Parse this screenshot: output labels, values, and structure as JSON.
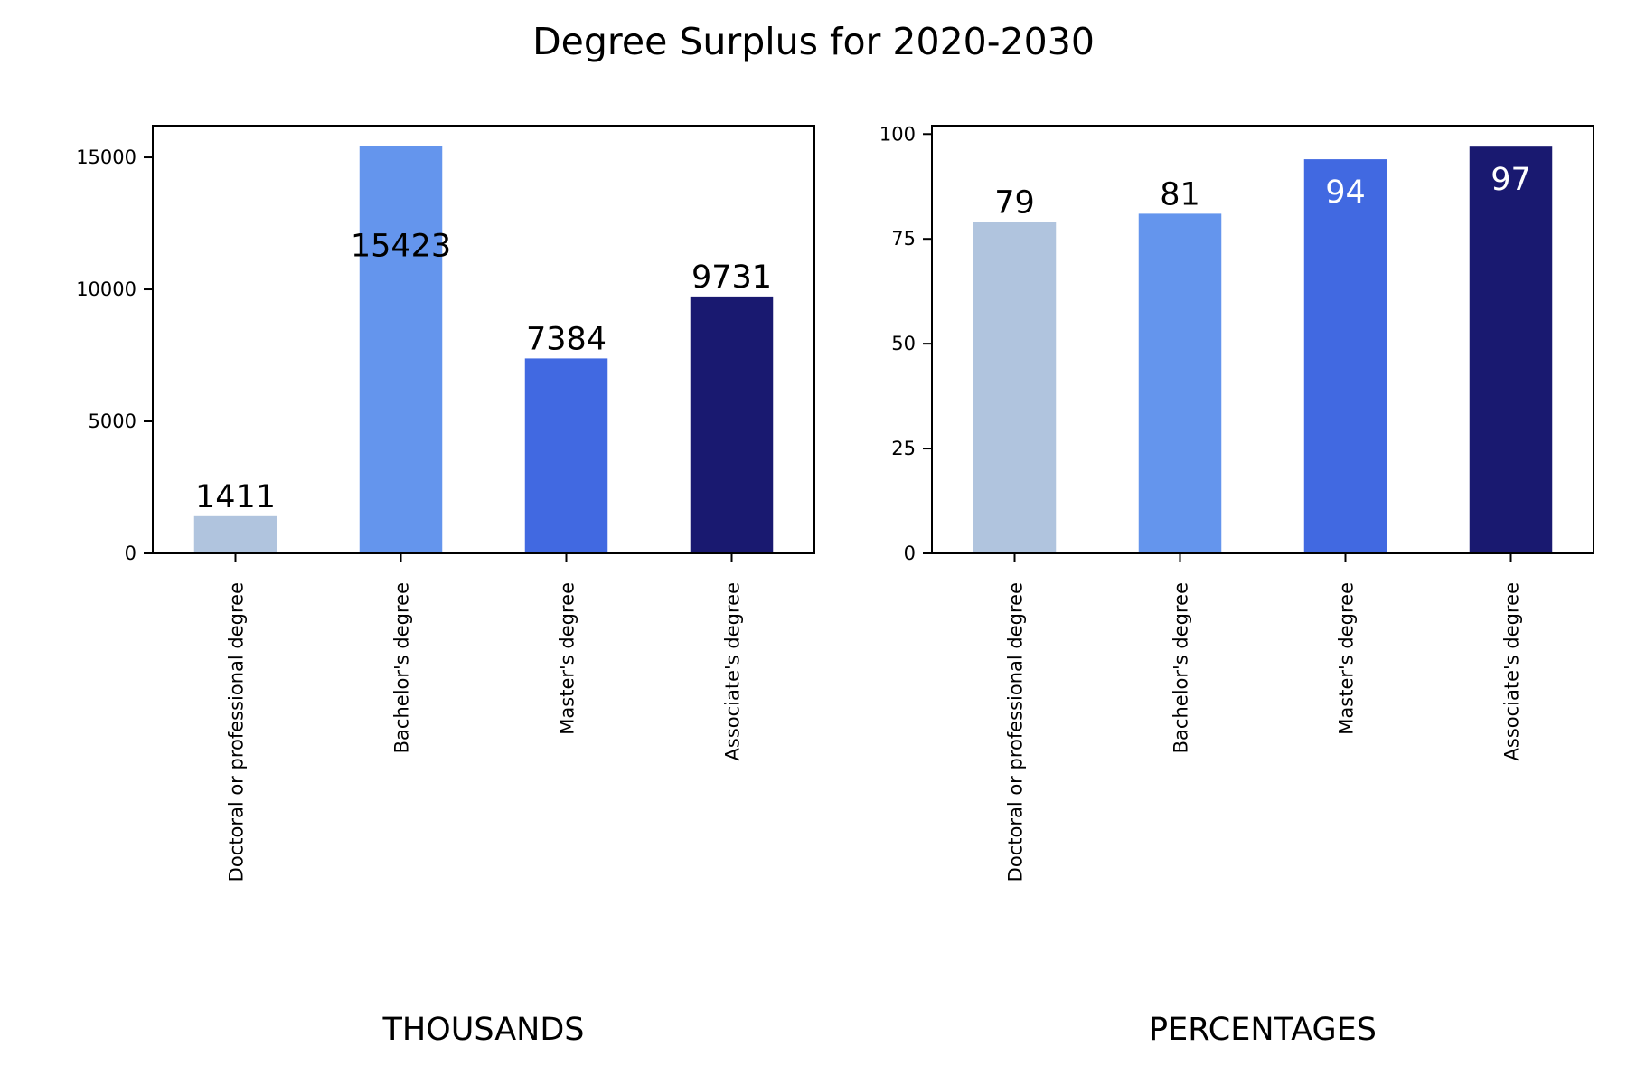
{
  "title": "Degree Surplus for 2020-2030",
  "chart_data": [
    {
      "type": "bar",
      "xlabel": "THOUSANDS",
      "categories": [
        "Doctoral or professional degree",
        "Bachelor's degree",
        "Master's degree",
        "Associate's degree"
      ],
      "values": [
        1411,
        15423,
        7384,
        9731
      ],
      "data_labels": [
        "1411",
        "15423",
        "7384",
        "9731"
      ],
      "ylim": [
        0,
        16200
      ],
      "yticks": [
        0,
        5000,
        10000,
        15000
      ],
      "colors": [
        "#b0c4de",
        "#6495ed",
        "#4169e1",
        "#191970"
      ],
      "label_colors": [
        "#000000",
        "#000000",
        "#000000",
        "#000000"
      ],
      "legend": "none",
      "grid": false
    },
    {
      "type": "bar",
      "xlabel": "PERCENTAGES",
      "categories": [
        "Doctoral or professional degree",
        "Bachelor's degree",
        "Master's degree",
        "Associate's degree"
      ],
      "values": [
        79,
        81,
        94,
        97
      ],
      "data_labels": [
        "79",
        "81",
        "94",
        "97"
      ],
      "ylim": [
        0,
        102
      ],
      "yticks": [
        0,
        25,
        50,
        75,
        100
      ],
      "colors": [
        "#b0c4de",
        "#6495ed",
        "#4169e1",
        "#191970"
      ],
      "label_colors": [
        "#000000",
        "#000000",
        "#ffffff",
        "#ffffff"
      ],
      "legend": "none",
      "grid": false
    }
  ]
}
